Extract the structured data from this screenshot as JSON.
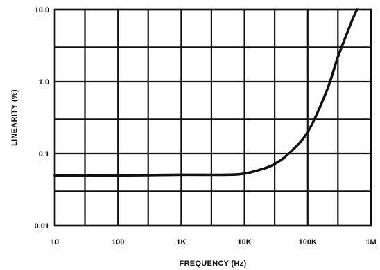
{
  "chart_data": {
    "type": "line",
    "xlabel": "FREQUENCY (Hz)",
    "ylabel": "LINEARITY (%)",
    "x_scale": "log",
    "y_scale": "log",
    "xlim": [
      10,
      1000000
    ],
    "ylim": [
      0.01,
      10
    ],
    "grid": true,
    "x_ticks": [
      {
        "value": 10,
        "label": "10"
      },
      {
        "value": 100,
        "label": "100"
      },
      {
        "value": 1000,
        "label": "1K"
      },
      {
        "value": 10000,
        "label": "10K"
      },
      {
        "value": 100000,
        "label": "100K"
      },
      {
        "value": 1000000,
        "label": "1M"
      }
    ],
    "y_ticks": [
      {
        "value": 0.01,
        "label": "0.01"
      },
      {
        "value": 0.1,
        "label": "0.1"
      },
      {
        "value": 1,
        "label": "1.0"
      },
      {
        "value": 10,
        "label": "10.0"
      }
    ],
    "x_minor_grid": [
      30,
      300,
      3000,
      30000,
      300000
    ],
    "y_minor_grid": [
      0.03,
      0.3,
      3
    ],
    "series": [
      {
        "color": "#111111",
        "x": [
          10,
          100,
          1000,
          5000,
          10000,
          20000,
          30000,
          50000,
          100000,
          200000,
          300000,
          500000,
          600000
        ],
        "y": [
          0.05,
          0.05,
          0.051,
          0.051,
          0.053,
          0.062,
          0.072,
          0.1,
          0.2,
          0.75,
          2.2,
          7,
          10
        ]
      }
    ]
  }
}
